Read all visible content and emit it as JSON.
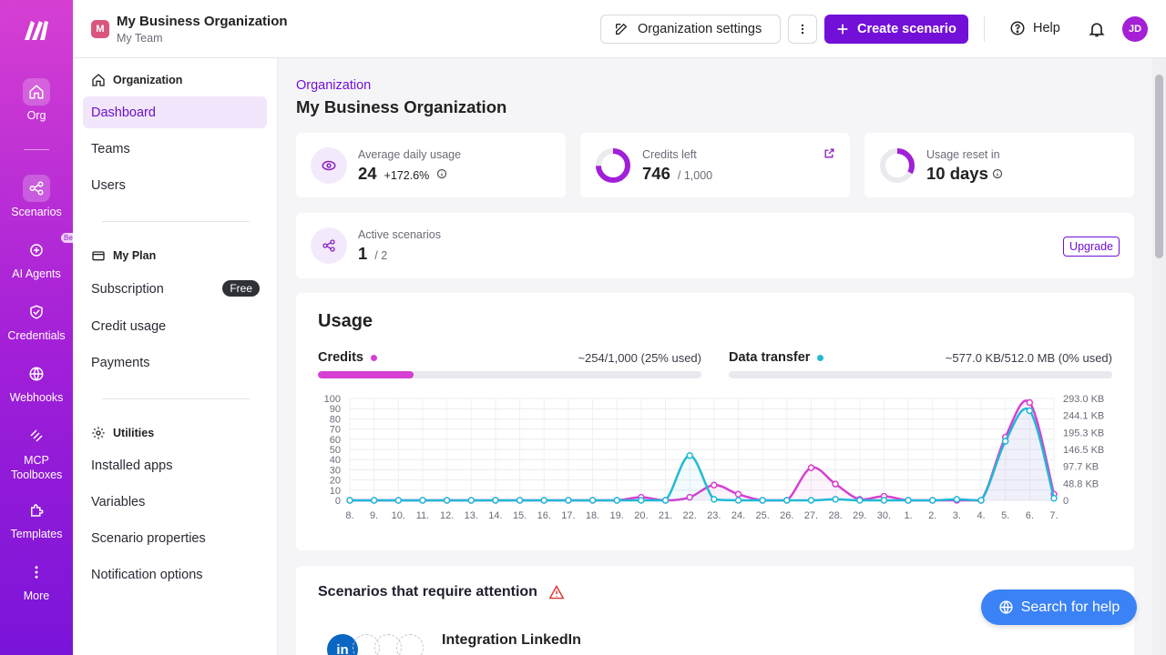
{
  "rail": {
    "items": [
      {
        "label": "Org",
        "icon": "home-icon"
      },
      {
        "label": "Scenarios",
        "icon": "share-nodes-icon"
      },
      {
        "label": "AI Agents",
        "icon": "sparkle-icon",
        "badge": "Beta"
      },
      {
        "label": "Credentials",
        "icon": "shield-icon"
      },
      {
        "label": "Webhooks",
        "icon": "globe-icon"
      },
      {
        "label": "MCP Toolboxes",
        "icon": "mcp-icon"
      },
      {
        "label": "Templates",
        "icon": "puzzle-icon"
      },
      {
        "label": "More",
        "icon": "more-vertical-icon"
      }
    ]
  },
  "topbar": {
    "org_initial": "M",
    "org_name": "My Business Organization",
    "team_name": "My Team",
    "settings_label": "Organization settings",
    "create_label": "Create scenario",
    "help_label": "Help",
    "user_initials": "JD"
  },
  "sidebar": {
    "organization_heading": "Organization",
    "organization_items": [
      "Dashboard",
      "Teams",
      "Users"
    ],
    "plan_heading": "My Plan",
    "plan_items": [
      "Subscription",
      "Credit usage",
      "Payments"
    ],
    "plan_badge": "Free",
    "utilities_heading": "Utilities",
    "utilities_items": [
      "Installed apps",
      "Variables",
      "Scenario properties",
      "Notification options"
    ]
  },
  "main": {
    "breadcrumb": "Organization",
    "title": "My Business Organization",
    "stats": {
      "avg_label": "Average daily usage",
      "avg_value": "24",
      "avg_change": "+172.6%",
      "credits_label": "Credits left",
      "credits_value": "746",
      "credits_total": "/ 1,000",
      "credits_fraction": 0.746,
      "reset_label": "Usage reset in",
      "reset_value": "10 days",
      "reset_fraction": 0.33,
      "active_label": "Active scenarios",
      "active_value": "1",
      "active_total": "/ 2",
      "upgrade_label": "Upgrade"
    },
    "usage": {
      "title": "Usage",
      "credits_label": "Credits",
      "credits_text": "~254/1,000 (25% used)",
      "credits_fraction": 0.25,
      "data_label": "Data transfer",
      "data_text": "~577.0 KB/512.0 MB (0% used)",
      "data_fraction": 0.0,
      "colors": {
        "credits": "#d63fd2",
        "data": "#22b8d6"
      }
    },
    "attention_title": "Scenarios that require attention",
    "attention_item": "Integration LinkedIn",
    "help_fab": "Search for help"
  },
  "chart_data": {
    "type": "line",
    "x": [
      "8.",
      "9.",
      "10.",
      "11.",
      "12.",
      "13.",
      "14.",
      "15.",
      "16.",
      "17.",
      "18.",
      "19.",
      "20.",
      "21.",
      "22.",
      "23.",
      "24.",
      "25.",
      "26.",
      "27.",
      "28.",
      "29.",
      "30.",
      "1.",
      "2.",
      "3.",
      "4.",
      "5.",
      "6.",
      "7."
    ],
    "y_left_ticks": [
      "100",
      "90",
      "80",
      "70",
      "60",
      "50",
      "40",
      "30",
      "20",
      "10",
      "0"
    ],
    "y_right_ticks": [
      "293.0 KB",
      "244.1 KB",
      "195.3 KB",
      "146.5 KB",
      "97.7 KB",
      "48.8 KB",
      "0"
    ],
    "ylim": [
      0,
      100
    ],
    "series": [
      {
        "name": "Credits",
        "color": "#d63fd2",
        "values": [
          0,
          0,
          0,
          0,
          0,
          0,
          0,
          0,
          0,
          0,
          0,
          0,
          3,
          0,
          3,
          15,
          6,
          0,
          0,
          32,
          16,
          1,
          4,
          0,
          0,
          0,
          0,
          62,
          96,
          6
        ]
      },
      {
        "name": "Data transfer",
        "color": "#22b8d6",
        "values": [
          0,
          0,
          0,
          0,
          0,
          0,
          0,
          0,
          0,
          0,
          0,
          0,
          0,
          0,
          44,
          1,
          0,
          0,
          0,
          0,
          1,
          0,
          0,
          0,
          0,
          1,
          0,
          58,
          88,
          2
        ]
      }
    ]
  }
}
